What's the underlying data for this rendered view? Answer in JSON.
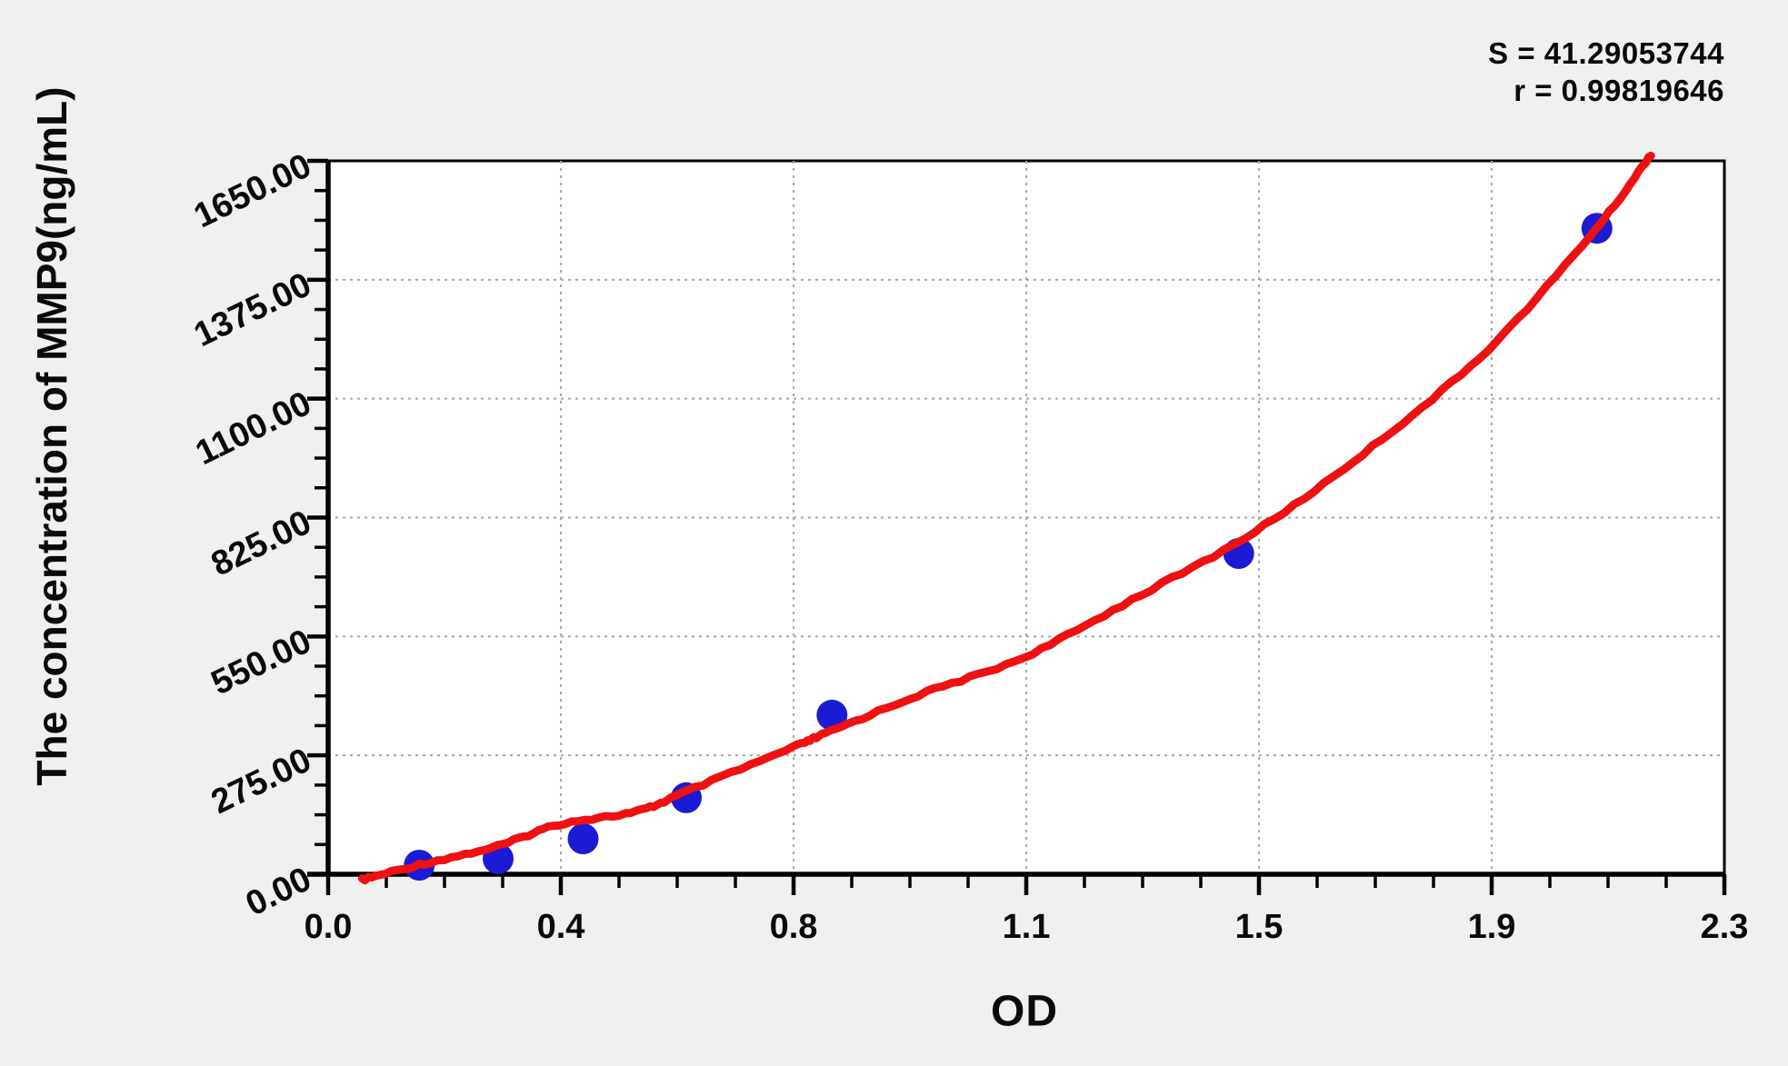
{
  "annotations": {
    "s_label": "S = 41.29053744",
    "r_label": "r = 0.99819646"
  },
  "chart_data": {
    "type": "scatter",
    "title": "",
    "xlabel": "OD",
    "ylabel": "The concentration of MMP9(ng/mL)",
    "xlim": [
      0,
      2.3
    ],
    "ylim": [
      0,
      1650
    ],
    "x_tick_labels": [
      "0.0",
      "0.4",
      "0.8",
      "1.1",
      "1.5",
      "1.9",
      "2.3"
    ],
    "x_tick_values": [
      0,
      0.3833,
      0.7667,
      1.15,
      1.5333,
      1.9167,
      2.3
    ],
    "y_tick_labels": [
      "0.00",
      "275.00",
      "550.00",
      "825.00",
      "1100.00",
      "1375.00",
      "1650.00"
    ],
    "y_tick_values": [
      0,
      275,
      550,
      825,
      1100,
      1375,
      1650
    ],
    "minor_ticks_per_interval": 3,
    "grid": true,
    "legend": "none",
    "stats": {
      "S": 41.29053744,
      "r": 0.99819646
    },
    "series": [
      {
        "name": "standard-points",
        "type": "scatter",
        "points": [
          {
            "od": 0.15,
            "concentration": 21
          },
          {
            "od": 0.28,
            "concentration": 36
          },
          {
            "od": 0.42,
            "concentration": 82
          },
          {
            "od": 0.59,
            "concentration": 177
          },
          {
            "od": 0.83,
            "concentration": 368
          },
          {
            "od": 1.5,
            "concentration": 742
          },
          {
            "od": 2.09,
            "concentration": 1494
          }
        ]
      },
      {
        "name": "fit-curve",
        "type": "line",
        "points_od_conc": [
          [
            0.056,
            -13
          ],
          [
            0.15,
            22
          ],
          [
            0.279,
            65
          ],
          [
            0.381,
            116
          ],
          [
            0.508,
            145
          ],
          [
            0.593,
            193
          ],
          [
            0.764,
            292
          ],
          [
            0.827,
            330
          ],
          [
            0.972,
            414
          ],
          [
            1.146,
            502
          ],
          [
            1.324,
            635
          ],
          [
            1.526,
            792
          ],
          [
            1.721,
            990
          ],
          [
            1.913,
            1217
          ],
          [
            2.089,
            1494
          ],
          [
            2.179,
            1665
          ]
        ]
      }
    ],
    "colors": {
      "curve": "#ee1111",
      "points": "#1b1bd3",
      "grid": "#a8a8a8",
      "axis": "#000000",
      "plot_background": "#ffffff",
      "page_background": "#f0f0ef",
      "text": "#0a0a0a"
    }
  }
}
